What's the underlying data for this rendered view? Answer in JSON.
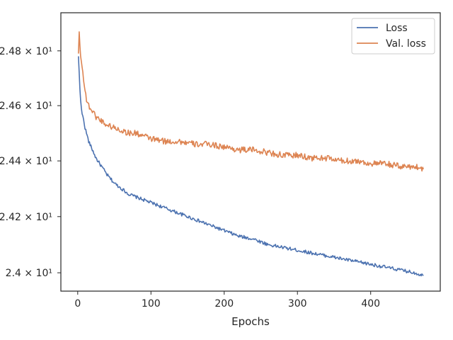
{
  "chart_data": {
    "type": "line",
    "title": "",
    "xlabel": "Epochs",
    "ylabel": "",
    "yscale": "log",
    "xlim": [
      -23,
      495
    ],
    "ylim": [
      23.935,
      24.94
    ],
    "grid": false,
    "legend_position": "top-right",
    "x_ticks": [
      0,
      100,
      200,
      300,
      400
    ],
    "y_ticks": [
      {
        "value": 24.0,
        "label": "2.4 × 10¹"
      },
      {
        "value": 24.2,
        "label": "2.42 × 10¹"
      },
      {
        "value": 24.4,
        "label": "2.44 × 10¹"
      },
      {
        "value": 24.6,
        "label": "2.46 × 10¹"
      },
      {
        "value": 24.8,
        "label": "2.48 × 10¹"
      }
    ],
    "series": [
      {
        "name": "Loss",
        "color": "#4c72b0",
        "x": [
          1,
          2,
          3,
          4,
          5,
          6,
          8,
          10,
          12,
          15,
          20,
          25,
          30,
          40,
          50,
          60,
          70,
          80,
          90,
          100,
          120,
          140,
          160,
          180,
          200,
          220,
          240,
          260,
          280,
          300,
          320,
          340,
          360,
          380,
          400,
          420,
          440,
          460,
          472
        ],
        "y": [
          24.78,
          24.72,
          24.66,
          24.62,
          24.59,
          24.57,
          24.55,
          24.52,
          24.5,
          24.47,
          24.44,
          24.41,
          24.39,
          24.35,
          24.32,
          24.3,
          24.28,
          24.27,
          24.26,
          24.25,
          24.23,
          24.21,
          24.19,
          24.17,
          24.15,
          24.13,
          24.12,
          24.1,
          24.09,
          24.08,
          24.07,
          24.06,
          24.05,
          24.04,
          24.03,
          24.02,
          24.01,
          24.0,
          23.99
        ]
      },
      {
        "name": "Val. loss",
        "color": "#dd8452",
        "x": [
          1,
          2,
          3,
          4,
          5,
          6,
          8,
          10,
          12,
          15,
          20,
          25,
          30,
          40,
          50,
          60,
          70,
          80,
          90,
          100,
          120,
          140,
          160,
          180,
          200,
          220,
          240,
          260,
          280,
          300,
          320,
          340,
          360,
          380,
          400,
          420,
          440,
          460,
          472
        ],
        "y": [
          24.79,
          24.87,
          24.82,
          24.78,
          24.76,
          24.74,
          24.7,
          24.66,
          24.62,
          24.6,
          24.58,
          24.56,
          24.55,
          24.53,
          24.52,
          24.51,
          24.5,
          24.5,
          24.49,
          24.48,
          24.47,
          24.47,
          24.46,
          24.46,
          24.45,
          24.44,
          24.44,
          24.43,
          24.42,
          24.42,
          24.41,
          24.41,
          24.4,
          24.4,
          24.39,
          24.39,
          24.38,
          24.38,
          24.37
        ]
      }
    ]
  }
}
